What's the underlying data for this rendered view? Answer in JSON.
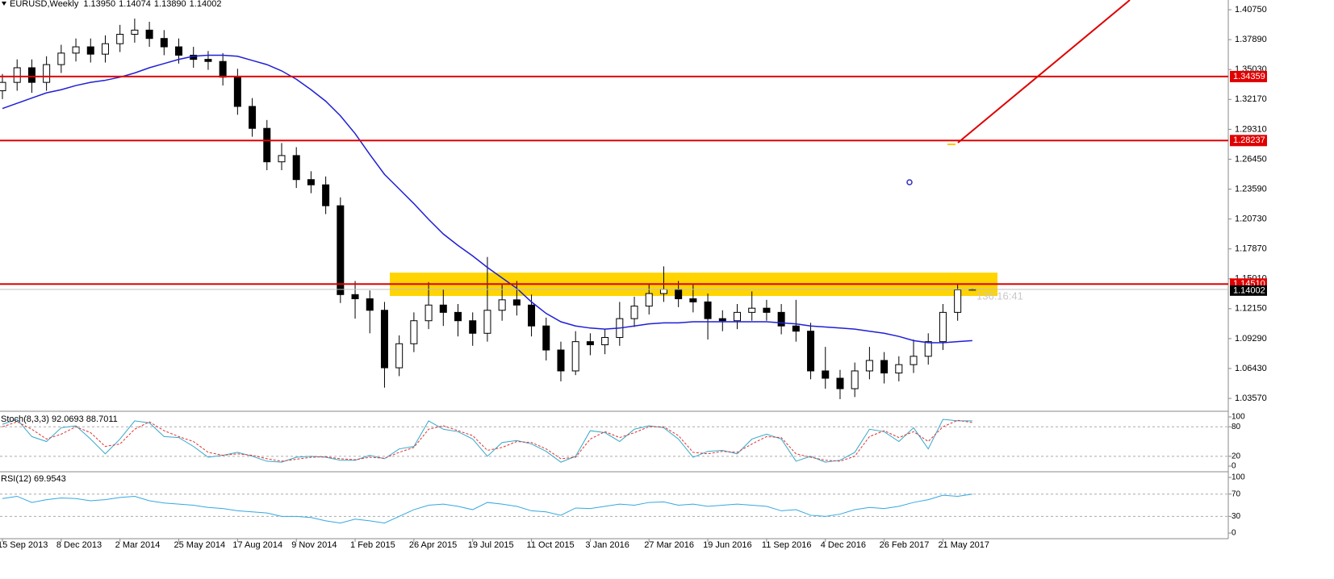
{
  "chart_data": {
    "type": "candlestick",
    "title": "EURUSD,Weekly",
    "header_labels": [
      "1.13950",
      "1.14074",
      "1.13890",
      "1.14002"
    ],
    "categories": [
      "15 Sep 2013",
      null,
      null,
      null,
      "8 Dec 2013",
      null,
      null,
      null,
      "2 Mar 2014",
      null,
      null,
      null,
      "25 May 2014",
      null,
      null,
      null,
      "17 Aug 2014",
      null,
      null,
      null,
      "9 Nov 2014",
      null,
      null,
      null,
      "1 Feb 2015",
      null,
      null,
      null,
      "26 Apr 2015",
      null,
      null,
      null,
      "19 Jul 2015",
      null,
      null,
      null,
      "11 Oct 2015",
      null,
      null,
      null,
      "3 Jan 2016",
      null,
      null,
      null,
      "27 Mar 2016",
      null,
      null,
      null,
      "19 Jun 2016",
      null,
      null,
      null,
      "11 Sep 2016",
      null,
      null,
      null,
      "4 Dec 2016",
      null,
      null,
      null,
      "26 Feb 2017",
      null,
      null,
      null,
      "21 May 2017",
      null,
      null
    ],
    "open": [
      1.33,
      1.338,
      1.352,
      1.338,
      1.355,
      1.366,
      1.372,
      1.365,
      1.375,
      1.384,
      1.388,
      1.38,
      1.372,
      1.364,
      1.36,
      1.358,
      1.343,
      1.315,
      1.294,
      1.262,
      1.268,
      1.245,
      1.24,
      1.22,
      1.135,
      1.131,
      1.12,
      1.065,
      1.088,
      1.11,
      1.125,
      1.118,
      1.11,
      1.098,
      1.12,
      1.13,
      1.125,
      1.105,
      1.082,
      1.062,
      1.09,
      1.087,
      1.094,
      1.112,
      1.124,
      1.136,
      1.14,
      1.131,
      1.128,
      1.112,
      1.11,
      1.118,
      1.122,
      1.118,
      1.105,
      1.1,
      1.062,
      1.055,
      1.045,
      1.062,
      1.072,
      1.06,
      1.068,
      1.076,
      1.09,
      1.118,
      1.1395
    ],
    "high": [
      1.346,
      1.36,
      1.36,
      1.363,
      1.374,
      1.38,
      1.38,
      1.383,
      1.393,
      1.399,
      1.396,
      1.388,
      1.38,
      1.372,
      1.368,
      1.366,
      1.351,
      1.323,
      1.302,
      1.28,
      1.276,
      1.253,
      1.248,
      1.228,
      1.148,
      1.139,
      1.128,
      1.096,
      1.118,
      1.147,
      1.14,
      1.126,
      1.118,
      1.171,
      1.145,
      1.148,
      1.135,
      1.113,
      1.09,
      1.1,
      1.098,
      1.102,
      1.128,
      1.133,
      1.145,
      1.162,
      1.148,
      1.145,
      1.136,
      1.12,
      1.126,
      1.138,
      1.13,
      1.126,
      1.13,
      1.108,
      1.085,
      1.063,
      1.07,
      1.085,
      1.08,
      1.076,
      1.092,
      1.098,
      1.126,
      1.145,
      1.14074
    ],
    "low": [
      1.322,
      1.33,
      1.328,
      1.33,
      1.347,
      1.358,
      1.357,
      1.357,
      1.367,
      1.376,
      1.372,
      1.364,
      1.356,
      1.352,
      1.35,
      1.335,
      1.307,
      1.286,
      1.254,
      1.254,
      1.237,
      1.232,
      1.212,
      1.127,
      1.112,
      1.098,
      1.046,
      1.057,
      1.08,
      1.102,
      1.105,
      1.095,
      1.086,
      1.09,
      1.11,
      1.115,
      1.095,
      1.072,
      1.052,
      1.058,
      1.077,
      1.078,
      1.086,
      1.104,
      1.116,
      1.128,
      1.123,
      1.118,
      1.092,
      1.1,
      1.102,
      1.11,
      1.11,
      1.097,
      1.09,
      1.054,
      1.045,
      1.035,
      1.037,
      1.054,
      1.05,
      1.052,
      1.06,
      1.068,
      1.082,
      1.11,
      1.1389
    ],
    "close": [
      1.338,
      1.352,
      1.338,
      1.355,
      1.366,
      1.372,
      1.365,
      1.375,
      1.384,
      1.388,
      1.38,
      1.372,
      1.364,
      1.36,
      1.358,
      1.343,
      1.315,
      1.294,
      1.262,
      1.268,
      1.245,
      1.24,
      1.22,
      1.135,
      1.131,
      1.12,
      1.065,
      1.088,
      1.11,
      1.125,
      1.118,
      1.11,
      1.098,
      1.12,
      1.13,
      1.125,
      1.105,
      1.082,
      1.062,
      1.09,
      1.087,
      1.094,
      1.112,
      1.124,
      1.136,
      1.14,
      1.131,
      1.128,
      1.112,
      1.11,
      1.118,
      1.122,
      1.118,
      1.105,
      1.1,
      1.062,
      1.055,
      1.045,
      1.062,
      1.072,
      1.06,
      1.068,
      1.076,
      1.09,
      1.118,
      1.1395,
      1.14002
    ],
    "ma": {
      "color": "#1f1fd6",
      "values": [
        1.313,
        1.318,
        1.323,
        1.328,
        1.331,
        1.335,
        1.338,
        1.34,
        1.343,
        1.347,
        1.352,
        1.356,
        1.36,
        1.363,
        1.364,
        1.364,
        1.363,
        1.359,
        1.355,
        1.349,
        1.341,
        1.331,
        1.32,
        1.306,
        1.289,
        1.269,
        1.25,
        1.236,
        1.222,
        1.207,
        1.193,
        1.182,
        1.172,
        1.161,
        1.151,
        1.141,
        1.128,
        1.117,
        1.109,
        1.105,
        1.103,
        1.102,
        1.103,
        1.105,
        1.107,
        1.108,
        1.108,
        1.109,
        1.109,
        1.109,
        1.109,
        1.109,
        1.109,
        1.108,
        1.107,
        1.105,
        1.104,
        1.103,
        1.102,
        1.1,
        1.098,
        1.095,
        1.091,
        1.089,
        1.089,
        1.09,
        1.091
      ]
    },
    "ylim": [
      1.0234,
      1.4168
    ],
    "yticks": [
      {
        "value": 1.4075,
        "label": "1.40750"
      },
      {
        "value": 1.3789,
        "label": "1.37890"
      },
      {
        "value": 1.3503,
        "label": "1.35030"
      },
      {
        "value": 1.3217,
        "label": "1.32170"
      },
      {
        "value": 1.2931,
        "label": "1.29310"
      },
      {
        "value": 1.2645,
        "label": "1.26450"
      },
      {
        "value": 1.2359,
        "label": "1.23590"
      },
      {
        "value": 1.2073,
        "label": "1.20730"
      },
      {
        "value": 1.1787,
        "label": "1.17870"
      },
      {
        "value": 1.1501,
        "label": "1.15010"
      },
      {
        "value": 1.1215,
        "label": "1.12150"
      },
      {
        "value": 1.0929,
        "label": "1.09290"
      },
      {
        "value": 1.0643,
        "label": "1.06430"
      },
      {
        "value": 1.0357,
        "label": "1.03570"
      }
    ],
    "hlines": [
      {
        "value": 1.34359,
        "label": "1.34359"
      },
      {
        "value": 1.28237,
        "label": "1.28237"
      },
      {
        "value": 1.1451,
        "label": "1.14510"
      }
    ],
    "hline_color": "#e00000",
    "bid": {
      "value": 1.14002,
      "label": "1.14002"
    },
    "zone": {
      "from": 1.1337,
      "to": 1.156,
      "color": "#ffd400"
    },
    "timer": "136:16:41",
    "indicators": [
      {
        "title": "Stoch(8,3,3) 92.0693 88.7011",
        "ylim": [
          -9.8,
          108.2
        ],
        "yticks": [
          0,
          20,
          80,
          100
        ],
        "levels": [
          20,
          80
        ],
        "series": [
          {
            "color": "#35a8c8",
            "dashed": false,
            "values": [
              85,
              95,
              60,
              50,
              78,
              82,
              55,
              25,
              55,
              92,
              88,
              60,
              58,
              40,
              18,
              22,
              28,
              20,
              10,
              8,
              18,
              20,
              18,
              12,
              12,
              22,
              15,
              35,
              40,
              92,
              75,
              70,
              55,
              20,
              48,
              52,
              45,
              30,
              8,
              20,
              72,
              68,
              50,
              75,
              82,
              78,
              55,
              18,
              30,
              32,
              25,
              55,
              65,
              55,
              10,
              20,
              8,
              12,
              28,
              75,
              70,
              50,
              78,
              35,
              95,
              92,
              92.0693
            ]
          },
          {
            "color": "#e03030",
            "dashed": true,
            "values": [
              80,
              90,
              75,
              55,
              65,
              80,
              68,
              40,
              45,
              75,
              90,
              72,
              60,
              50,
              28,
              22,
              25,
              22,
              15,
              10,
              14,
              18,
              19,
              15,
              13,
              18,
              16,
              28,
              38,
              75,
              82,
              72,
              62,
              32,
              38,
              50,
              48,
              35,
              15,
              18,
              55,
              70,
              58,
              68,
              80,
              80,
              62,
              28,
              25,
              30,
              28,
              45,
              60,
              58,
              25,
              18,
              12,
              10,
              20,
              60,
              72,
              58,
              70,
              50,
              80,
              93,
              88.7011
            ]
          }
        ]
      },
      {
        "title": "RSI(12) 69.9543",
        "ylim": [
          -10.1,
          108.7
        ],
        "yticks": [
          0,
          30,
          70,
          100
        ],
        "levels": [
          30,
          70
        ],
        "series": [
          {
            "color": "#35a8e0",
            "dashed": false,
            "values": [
              62,
              66,
              55,
              60,
              63,
              62,
              58,
              60,
              64,
              66,
              58,
              54,
              52,
              50,
              46,
              44,
              40,
              38,
              36,
              30,
              30,
              28,
              22,
              18,
              25,
              22,
              18,
              30,
              42,
              50,
              52,
              48,
              42,
              55,
              52,
              48,
              40,
              38,
              32,
              45,
              44,
              48,
              52,
              50,
              55,
              56,
              50,
              52,
              48,
              50,
              52,
              50,
              48,
              40,
              42,
              32,
              30,
              34,
              42,
              46,
              44,
              48,
              55,
              60,
              68,
              66,
              69.9543
            ]
          }
        ]
      }
    ]
  }
}
